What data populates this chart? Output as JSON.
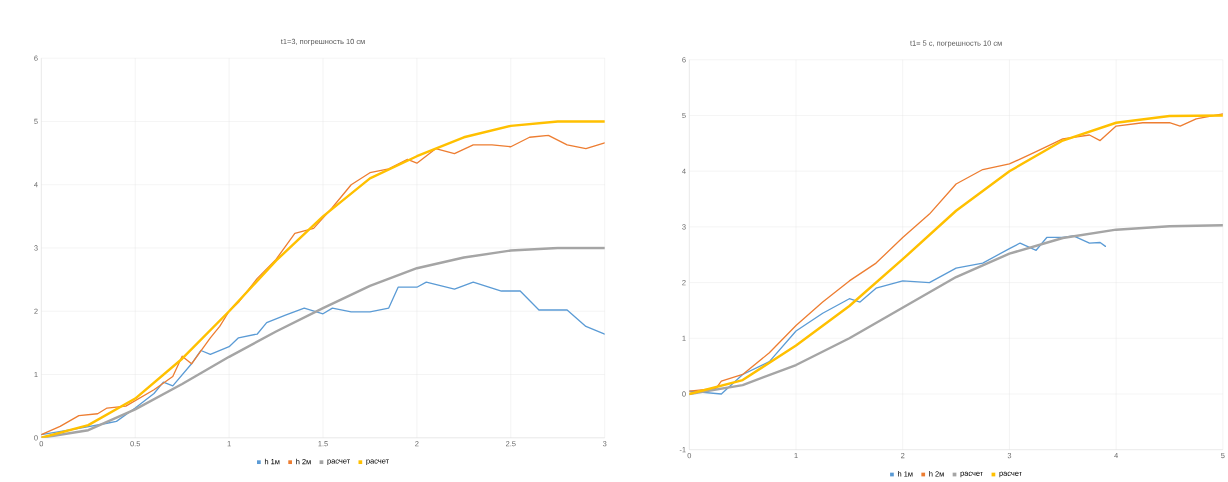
{
  "chart_data": [
    {
      "type": "line",
      "title": "t1=3, погрешность 10 см",
      "xlim": [
        0,
        3
      ],
      "ylim": [
        0,
        6
      ],
      "xticks": [
        0,
        0.5,
        1,
        1.5,
        2,
        2.5,
        3
      ],
      "yticks": [
        0,
        1,
        2,
        3,
        4,
        5,
        6
      ],
      "grid": true,
      "legend": "bottom",
      "marker": "none",
      "line_style": "solid",
      "series": [
        {
          "name": "h 1м",
          "color": "#5b9bd5",
          "x": [
            0,
            0.2,
            0.35,
            0.4,
            0.5,
            0.6,
            0.65,
            0.7,
            0.8,
            0.85,
            0.9,
            1.0,
            1.05,
            1.15,
            1.2,
            1.3,
            1.4,
            1.5,
            1.55,
            1.65,
            1.75,
            1.85,
            1.9,
            2.0,
            2.05,
            2.2,
            2.3,
            2.45,
            2.55,
            2.65,
            2.8,
            2.9,
            3.0
          ],
          "values": [
            0.05,
            0.15,
            0.23,
            0.26,
            0.47,
            0.7,
            0.88,
            0.82,
            1.17,
            1.38,
            1.32,
            1.44,
            1.58,
            1.64,
            1.82,
            1.94,
            2.05,
            1.96,
            2.05,
            1.99,
            1.99,
            2.05,
            2.38,
            2.38,
            2.46,
            2.35,
            2.46,
            2.32,
            2.32,
            2.02,
            2.02,
            1.76,
            1.64
          ]
        },
        {
          "name": "h 2м",
          "color": "#ed7d31",
          "x": [
            0,
            0.1,
            0.2,
            0.3,
            0.35,
            0.45,
            0.6,
            0.7,
            0.75,
            0.8,
            0.9,
            0.95,
            1.0,
            1.05,
            1.15,
            1.25,
            1.35,
            1.45,
            1.55,
            1.65,
            1.75,
            1.85,
            1.95,
            2.0,
            2.1,
            2.2,
            2.3,
            2.4,
            2.5,
            2.6,
            2.7,
            2.8,
            2.9,
            3.0
          ],
          "values": [
            0.05,
            0.18,
            0.35,
            0.38,
            0.47,
            0.5,
            0.76,
            0.97,
            1.29,
            1.17,
            1.58,
            1.76,
            2.0,
            2.14,
            2.52,
            2.82,
            3.23,
            3.31,
            3.64,
            4.0,
            4.19,
            4.25,
            4.4,
            4.34,
            4.57,
            4.49,
            4.63,
            4.63,
            4.6,
            4.75,
            4.78,
            4.63,
            4.57,
            4.66
          ]
        },
        {
          "name": "расчет",
          "color": "#a5a5a5",
          "x": [
            0,
            0.25,
            0.5,
            0.75,
            1,
            1.25,
            1.5,
            1.75,
            2,
            2.25,
            2.5,
            2.75,
            3
          ],
          "values": [
            0,
            0.12,
            0.45,
            0.85,
            1.28,
            1.68,
            2.05,
            2.4,
            2.68,
            2.85,
            2.96,
            3.0,
            3.0
          ]
        },
        {
          "name": "расчет",
          "color": "#ffc000",
          "x": [
            0,
            0.25,
            0.5,
            0.75,
            1,
            1.25,
            1.5,
            1.75,
            2,
            2.25,
            2.5,
            2.75,
            3
          ],
          "values": [
            0,
            0.2,
            0.62,
            1.25,
            2.0,
            2.8,
            3.5,
            4.1,
            4.45,
            4.75,
            4.93,
            5.0,
            5.0
          ]
        }
      ]
    },
    {
      "type": "line",
      "title": "t1= 5 с, погрешность 10 см",
      "xlim": [
        0,
        5
      ],
      "ylim": [
        -1,
        6
      ],
      "xticks": [
        0,
        1,
        2,
        3,
        4,
        5
      ],
      "yticks": [
        -1,
        0,
        1,
        2,
        3,
        4,
        5,
        6
      ],
      "grid": true,
      "legend": "bottom",
      "marker": "none",
      "line_style": "solid",
      "series": [
        {
          "name": "h 1м",
          "color": "#5b9bd5",
          "x": [
            0,
            0.3,
            0.5,
            0.75,
            1,
            1.25,
            1.5,
            1.6,
            1.75,
            2,
            2.25,
            2.5,
            2.75,
            3,
            3.1,
            3.25,
            3.35,
            3.5,
            3.6,
            3.75,
            3.85,
            3.9
          ],
          "values": [
            0.05,
            0.0,
            0.35,
            0.58,
            1.13,
            1.45,
            1.71,
            1.65,
            1.9,
            2.03,
            2.0,
            2.26,
            2.35,
            2.61,
            2.71,
            2.58,
            2.81,
            2.81,
            2.84,
            2.71,
            2.72,
            2.65
          ]
        },
        {
          "name": "h 2м",
          "color": "#ed7d31",
          "x": [
            0,
            0.25,
            0.3,
            0.5,
            0.75,
            1.0,
            1.25,
            1.5,
            1.75,
            2,
            2.25,
            2.5,
            2.75,
            3.0,
            3.25,
            3.5,
            3.75,
            3.85,
            4,
            4.25,
            4.5,
            4.6,
            4.75,
            5
          ],
          "values": [
            0.05,
            0.1,
            0.23,
            0.35,
            0.74,
            1.23,
            1.65,
            2.03,
            2.35,
            2.81,
            3.23,
            3.77,
            4.03,
            4.13,
            4.35,
            4.58,
            4.65,
            4.55,
            4.81,
            4.87,
            4.87,
            4.81,
            4.94,
            5.03
          ]
        },
        {
          "name": "расчет",
          "color": "#a5a5a5",
          "x": [
            0,
            0.5,
            1,
            1.5,
            2,
            2.5,
            3,
            3.5,
            4,
            4.5,
            5
          ],
          "values": [
            0,
            0.16,
            0.52,
            1.0,
            1.55,
            2.1,
            2.52,
            2.8,
            2.95,
            3.01,
            3.03
          ]
        },
        {
          "name": "расчет",
          "color": "#ffc000",
          "x": [
            0,
            0.5,
            1,
            1.5,
            2,
            2.5,
            3,
            3.5,
            4,
            4.5,
            5
          ],
          "values": [
            0,
            0.25,
            0.87,
            1.58,
            2.42,
            3.29,
            4.0,
            4.55,
            4.87,
            4.99,
            5.0
          ]
        }
      ]
    }
  ]
}
